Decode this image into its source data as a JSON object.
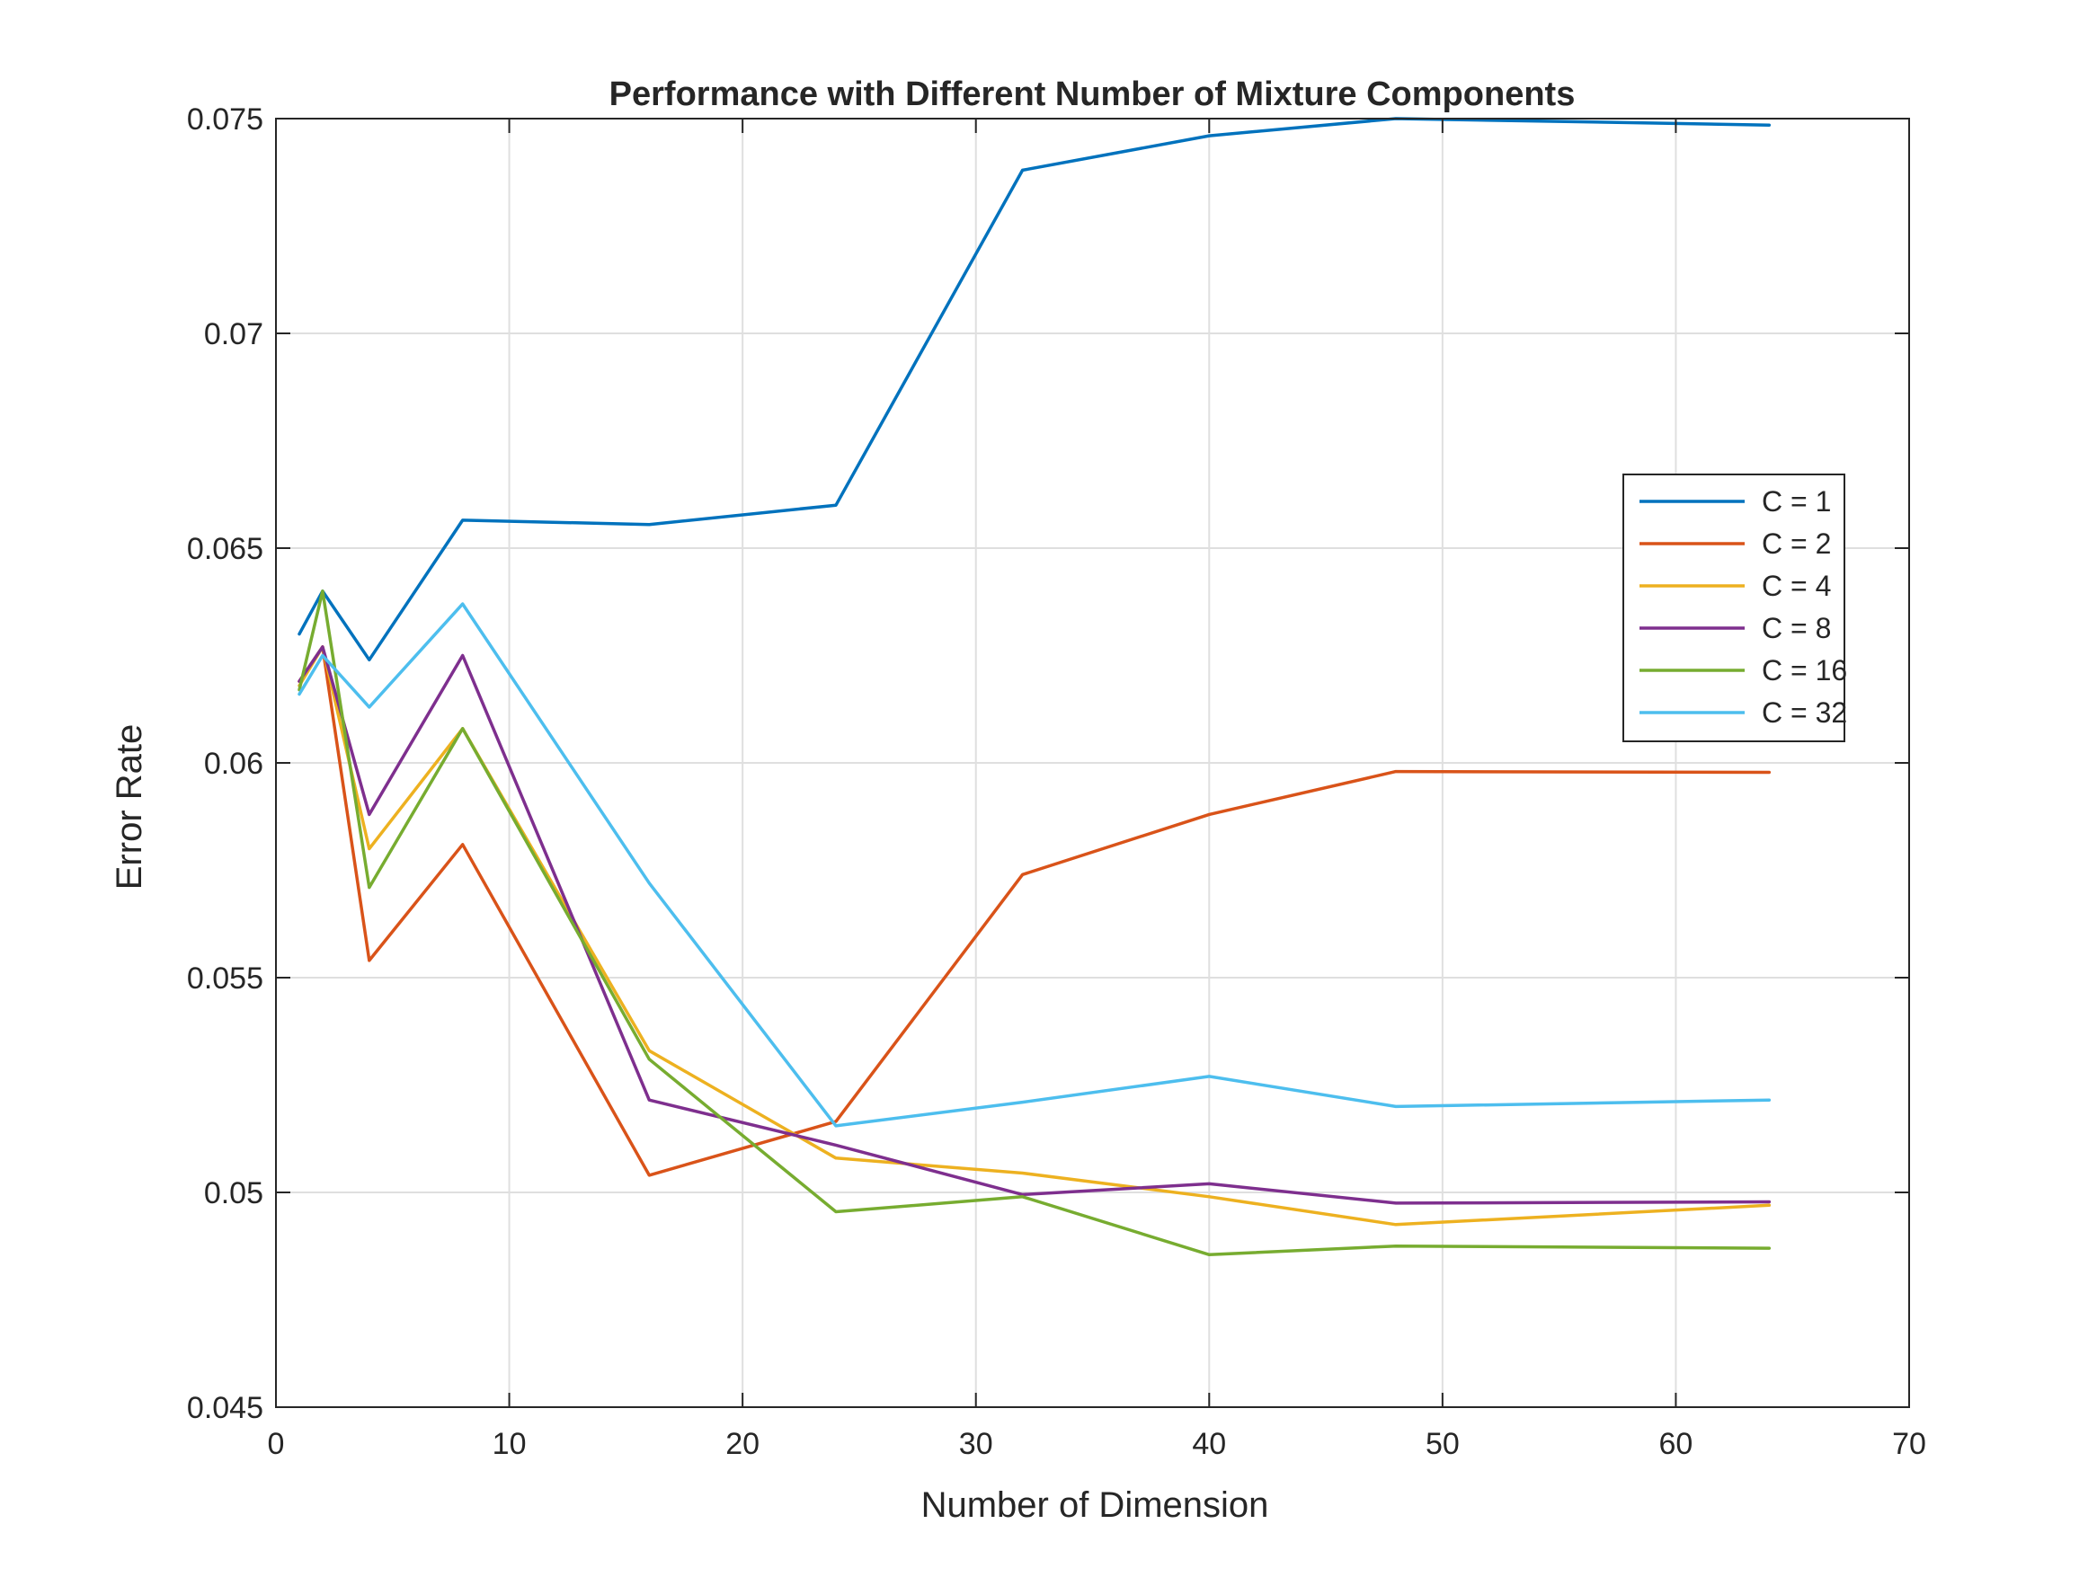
{
  "chart_data": {
    "type": "line",
    "title": "Performance with Different Number of Mixture Components",
    "xlabel": "Number of Dimension",
    "ylabel": "Error Rate",
    "xlim": [
      0,
      70
    ],
    "ylim": [
      0.045,
      0.075
    ],
    "xticks": [
      0,
      10,
      20,
      30,
      40,
      50,
      60,
      70
    ],
    "xtick_labels": [
      "0",
      "10",
      "20",
      "30",
      "40",
      "50",
      "60",
      "70"
    ],
    "yticks": [
      0.045,
      0.05,
      0.055,
      0.06,
      0.065,
      0.07,
      0.075
    ],
    "ytick_labels": [
      "0.045",
      "0.05",
      "0.055",
      "0.06",
      "0.065",
      "0.07",
      "0.075"
    ],
    "grid": true,
    "legend_position": "right",
    "x": [
      1,
      2,
      4,
      8,
      16,
      24,
      32,
      40,
      48,
      64
    ],
    "series": [
      {
        "name": "C = 1",
        "color": "#0072BD",
        "values": [
          0.063,
          0.064,
          0.0624,
          0.06565,
          0.06555,
          0.066,
          0.0738,
          0.0746,
          0.075,
          0.07485
        ]
      },
      {
        "name": "C = 2",
        "color": "#D95319",
        "values": [
          0.0619,
          0.0627,
          0.0554,
          0.0581,
          0.0504,
          0.05165,
          0.0574,
          0.0588,
          0.0598,
          0.05978
        ]
      },
      {
        "name": "C = 4",
        "color": "#EDB120",
        "values": [
          0.0618,
          0.0627,
          0.058,
          0.0608,
          0.0533,
          0.0508,
          0.05045,
          0.0499,
          0.04925,
          0.0497
        ]
      },
      {
        "name": "C = 8",
        "color": "#7E2F8E",
        "values": [
          0.0619,
          0.0627,
          0.0588,
          0.0625,
          0.05215,
          0.0511,
          0.04995,
          0.0502,
          0.04975,
          0.04978
        ]
      },
      {
        "name": "C = 16",
        "color": "#77AC30",
        "values": [
          0.0617,
          0.064,
          0.0571,
          0.0608,
          0.0531,
          0.04955,
          0.0499,
          0.04855,
          0.04875,
          0.0487
        ]
      },
      {
        "name": "C = 32",
        "color": "#4DBEEE",
        "values": [
          0.0616,
          0.0625,
          0.0613,
          0.0637,
          0.0572,
          0.05155,
          0.0521,
          0.0527,
          0.052,
          0.05215
        ]
      }
    ]
  }
}
